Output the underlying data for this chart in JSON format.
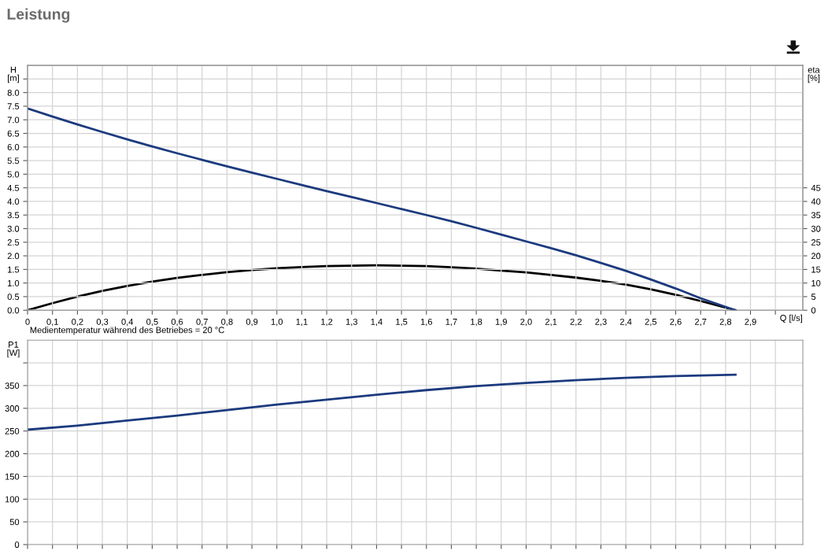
{
  "chart_data": [
    {
      "type": "line",
      "title": "Leistung",
      "ylabel": "H\n[m]",
      "y2label": "eta\n[%]",
      "xlabel": "Q [l/s]",
      "annotations": [
        "Medientemperatur während des Betriebes = 20 °C"
      ],
      "xlim": [
        0,
        3.11
      ],
      "ylim": [
        0,
        9
      ],
      "y2lim": [
        0,
        90
      ],
      "xticks": [
        0,
        {
          "value": 0.1,
          "label": "0,1"
        },
        {
          "value": 0.2,
          "label": "0,2"
        },
        {
          "value": 0.3,
          "label": "0,3"
        },
        {
          "value": 0.4,
          "label": "0,4"
        },
        {
          "value": 0.5,
          "label": "0,5"
        },
        {
          "value": 0.6,
          "label": "0,6"
        },
        {
          "value": 0.7,
          "label": "0,7"
        },
        {
          "value": 0.8,
          "label": "0,8"
        },
        {
          "value": 0.9,
          "label": "0,9"
        },
        {
          "value": 1.0,
          "label": "1,0"
        },
        {
          "value": 1.1,
          "label": "1,1"
        },
        {
          "value": 1.2,
          "label": "1,2"
        },
        {
          "value": 1.3,
          "label": "1,3"
        },
        {
          "value": 1.4,
          "label": "1,4"
        },
        {
          "value": 1.5,
          "label": "1,5"
        },
        {
          "value": 1.6,
          "label": "1,6"
        },
        {
          "value": 1.7,
          "label": "1,7"
        },
        {
          "value": 1.8,
          "label": "1,8"
        },
        {
          "value": 1.9,
          "label": "1,9"
        },
        {
          "value": 2.0,
          "label": "2,0"
        },
        {
          "value": 2.1,
          "label": "2,1"
        },
        {
          "value": 2.2,
          "label": "2,2"
        },
        {
          "value": 2.3,
          "label": "2,3"
        },
        {
          "value": 2.4,
          "label": "2,4"
        },
        {
          "value": 2.5,
          "label": "2,5"
        },
        {
          "value": 2.6,
          "label": "2,6"
        },
        {
          "value": 2.7,
          "label": "2,7"
        },
        {
          "value": 2.8,
          "label": "2,8"
        },
        {
          "value": 2.9,
          "label": "2,9"
        },
        {
          "value": 3.0,
          "label": null
        }
      ],
      "yticks": [
        {
          "value": 0,
          "label": "0.0"
        },
        0.5,
        {
          "value": 1,
          "label": "1.0"
        },
        1.5,
        {
          "value": 2,
          "label": "2.0"
        },
        2.5,
        {
          "value": 3,
          "label": "3.0"
        },
        3.5,
        {
          "value": 4,
          "label": "4.0"
        },
        4.5,
        {
          "value": 5,
          "label": "5.0"
        },
        5.5,
        {
          "value": 6,
          "label": "6.0"
        },
        6.5,
        {
          "value": 7,
          "label": "7.0"
        },
        7.5,
        {
          "value": 8,
          "label": "8.0"
        },
        {
          "value": 8.5,
          "label": null
        }
      ],
      "y2ticks": [
        0,
        5,
        10,
        15,
        20,
        25,
        30,
        35,
        40,
        45
      ],
      "grid": true,
      "legend": false,
      "series": [
        {
          "color": "#1c3a7e",
          "x": [
            0,
            0.1,
            0.2,
            0.3,
            0.4,
            0.5,
            0.6,
            0.7,
            0.8,
            0.9,
            1.0,
            1.1,
            1.2,
            1.3,
            1.4,
            1.5,
            1.6,
            1.7,
            1.8,
            1.9,
            2.0,
            2.1,
            2.2,
            2.3,
            2.4,
            2.5,
            2.6,
            2.7,
            2.84
          ],
          "values": [
            7.42,
            7.12,
            6.83,
            6.55,
            6.28,
            6.02,
            5.77,
            5.53,
            5.29,
            5.06,
            4.83,
            4.6,
            4.38,
            4.16,
            3.94,
            3.72,
            3.5,
            3.27,
            3.03,
            2.78,
            2.53,
            2.28,
            2.02,
            1.74,
            1.45,
            1.13,
            0.8,
            0.44,
            0
          ]
        },
        {
          "color": "#000000",
          "axis": "y2",
          "x": [
            0,
            0.1,
            0.2,
            0.3,
            0.4,
            0.5,
            0.6,
            0.7,
            0.8,
            0.9,
            1.0,
            1.1,
            1.2,
            1.3,
            1.4,
            1.5,
            1.6,
            1.7,
            1.8,
            1.9,
            2.0,
            2.1,
            2.2,
            2.3,
            2.4,
            2.5,
            2.6,
            2.7,
            2.84
          ],
          "values": [
            0,
            2.6,
            5,
            7.1,
            8.9,
            10.5,
            11.9,
            13,
            14,
            14.8,
            15.4,
            15.9,
            16.2,
            16.4,
            16.5,
            16.4,
            16.2,
            15.8,
            15.3,
            14.6,
            13.9,
            13,
            12,
            10.8,
            9.4,
            7.7,
            5.7,
            3.4,
            0
          ]
        }
      ]
    },
    {
      "type": "line",
      "ylabel": "P1\n[W]",
      "xlim": [
        0,
        3.11
      ],
      "ylim": [
        0,
        450
      ],
      "tick_labels": "y",
      "xticks": [
        {
          "value": 0,
          "label": null
        },
        {
          "value": 0.1,
          "label": null
        },
        {
          "value": 0.2,
          "label": null
        },
        {
          "value": 0.3,
          "label": null
        },
        {
          "value": 0.4,
          "label": null
        },
        {
          "value": 0.5,
          "label": null
        },
        {
          "value": 0.6,
          "label": null
        },
        {
          "value": 0.7,
          "label": null
        },
        {
          "value": 0.8,
          "label": null
        },
        {
          "value": 0.9,
          "label": null
        },
        {
          "value": 1.0,
          "label": null
        },
        {
          "value": 1.1,
          "label": null
        },
        {
          "value": 1.2,
          "label": null
        },
        {
          "value": 1.3,
          "label": null
        },
        {
          "value": 1.4,
          "label": null
        },
        {
          "value": 1.5,
          "label": null
        },
        {
          "value": 1.6,
          "label": null
        },
        {
          "value": 1.7,
          "label": null
        },
        {
          "value": 1.8,
          "label": null
        },
        {
          "value": 1.9,
          "label": null
        },
        {
          "value": 2.0,
          "label": null
        },
        {
          "value": 2.1,
          "label": null
        },
        {
          "value": 2.2,
          "label": null
        },
        {
          "value": 2.3,
          "label": null
        },
        {
          "value": 2.4,
          "label": null
        },
        {
          "value": 2.5,
          "label": null
        },
        {
          "value": 2.6,
          "label": null
        },
        {
          "value": 2.7,
          "label": null
        },
        {
          "value": 2.8,
          "label": null
        },
        {
          "value": 2.9,
          "label": null
        },
        {
          "value": 3.0,
          "label": null
        }
      ],
      "yticks": [
        0,
        50,
        100,
        150,
        200,
        250,
        300,
        350,
        {
          "value": 400,
          "label": null
        }
      ],
      "grid": true,
      "legend": false,
      "series": [
        {
          "color": "#1c3a7e",
          "x": [
            0,
            0.2,
            0.4,
            0.6,
            0.8,
            1.0,
            1.2,
            1.4,
            1.6,
            1.8,
            2.0,
            2.2,
            2.4,
            2.6,
            2.84
          ],
          "values": [
            253,
            262,
            273,
            284,
            296,
            308,
            319,
            330,
            340,
            349,
            356,
            362,
            367,
            371,
            374
          ]
        }
      ]
    }
  ]
}
